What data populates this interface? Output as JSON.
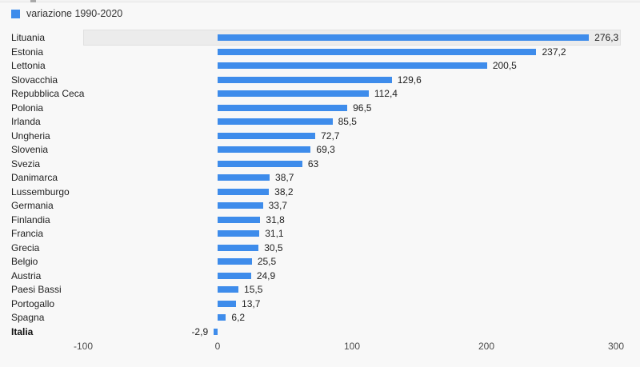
{
  "page": {
    "background_color": "#f8f8f8"
  },
  "legend": {
    "label": "variazione 1990-2020",
    "swatch_color": "#3e8ceb"
  },
  "chart_data": {
    "type": "bar",
    "orientation": "horizontal",
    "series_name": "variazione 1990-2020",
    "categories": [
      "Lituania",
      "Estonia",
      "Lettonia",
      "Slovacchia",
      "Repubblica Ceca",
      "Polonia",
      "Irlanda",
      "Ungheria",
      "Slovenia",
      "Svezia",
      "Danimarca",
      "Lussemburgo",
      "Germania",
      "Finlandia",
      "Francia",
      "Grecia",
      "Belgio",
      "Austria",
      "Paesi Bassi",
      "Portogallo",
      "Spagna",
      "Italia"
    ],
    "values": [
      276.3,
      237.2,
      200.5,
      129.6,
      112.4,
      96.5,
      85.5,
      72.7,
      69.3,
      63,
      38.7,
      38.2,
      33.7,
      31.8,
      31.1,
      30.5,
      25.5,
      24.9,
      15.5,
      13.7,
      6.2,
      -2.9
    ],
    "value_labels": [
      "276,3",
      "237,2",
      "200,5",
      "129,6",
      "112,4",
      "96,5",
      "85,5",
      "72,7",
      "69,3",
      "63",
      "38,7",
      "38,2",
      "33,7",
      "31,8",
      "31,1",
      "30,5",
      "25,5",
      "24,9",
      "15,5",
      "13,7",
      "6,2",
      "-2,9"
    ],
    "x_tick_labels": [
      "-100",
      "0",
      "100",
      "200",
      "300"
    ],
    "x_tick_values": [
      -100,
      0,
      100,
      200,
      300
    ],
    "xlim": [
      -100,
      300
    ],
    "bar_color": "#3e8ceb",
    "highlighted_category": "Lituania",
    "bold_category": "Italia",
    "grid": false,
    "legend_position": "top-left"
  }
}
